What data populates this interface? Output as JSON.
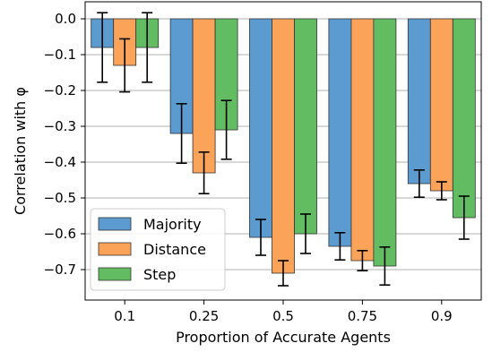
{
  "chart_data": {
    "type": "bar",
    "xlabel": "Proportion of Accurate Agents",
    "ylabel": "Correlation with φ",
    "categories": [
      "0.1",
      "0.25",
      "0.5",
      "0.75",
      "0.9"
    ],
    "ylim": [
      -0.8,
      0.05
    ],
    "yticks": [
      "0.0",
      "−0.1",
      "−0.2",
      "−0.3",
      "−0.4",
      "−0.5",
      "−0.6",
      "−0.7"
    ],
    "ytick_values": [
      0.0,
      -0.1,
      -0.2,
      -0.3,
      -0.4,
      -0.5,
      -0.6,
      -0.7
    ],
    "grid": "horizontal",
    "legend_position": "lower-left",
    "series": [
      {
        "name": "Majority",
        "color": "#5b9bd0",
        "values": [
          -0.08,
          -0.32,
          -0.61,
          -0.635,
          -0.46
        ],
        "err": [
          0.097,
          0.083,
          0.05,
          0.038,
          0.038
        ]
      },
      {
        "name": "Distance",
        "color": "#fca35a",
        "values": [
          -0.13,
          -0.43,
          -0.71,
          -0.675,
          -0.48
        ],
        "err": [
          0.074,
          0.058,
          0.035,
          0.028,
          0.025
        ]
      },
      {
        "name": "Step",
        "color": "#62bd62",
        "values": [
          -0.08,
          -0.31,
          -0.6,
          -0.69,
          -0.555
        ],
        "err": [
          0.097,
          0.082,
          0.055,
          0.053,
          0.06
        ]
      }
    ]
  }
}
